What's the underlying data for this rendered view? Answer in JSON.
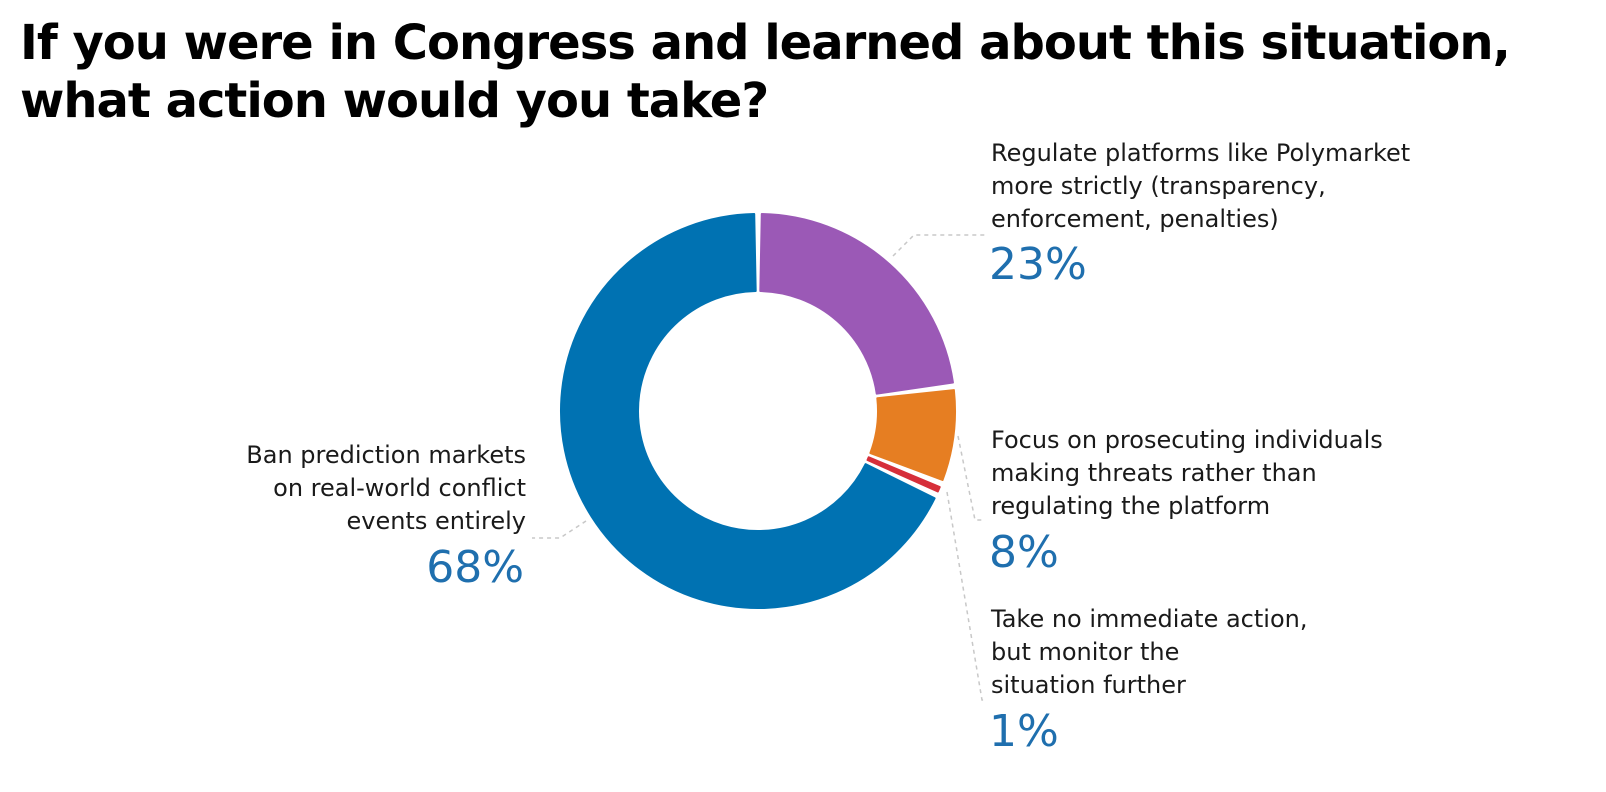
{
  "chart_data": {
    "type": "pie",
    "donut": true,
    "title": "If you were in Congress and learned about this situation,\nwhat action would you take?",
    "slices": [
      {
        "label": "Regulate platforms like Polymarket\nmore strictly (transparency,\nenforcement, penalties)",
        "value": 23,
        "value_label": "23%",
        "color": "#9b59b6"
      },
      {
        "label": "Focus on prosecuting individuals\nmaking threats rather than\nregulating the platform",
        "value": 8,
        "value_label": "8%",
        "color": "#e67e22"
      },
      {
        "label": "Take no immediate action,\nbut monitor the\nsituation further",
        "value": 1,
        "value_label": "1%",
        "color": "#d62f3a"
      },
      {
        "label": "Ban prediction markets\non real-world conflict\nevents entirely",
        "value": 68,
        "value_label": "68%",
        "color": "#0072b2"
      }
    ]
  }
}
